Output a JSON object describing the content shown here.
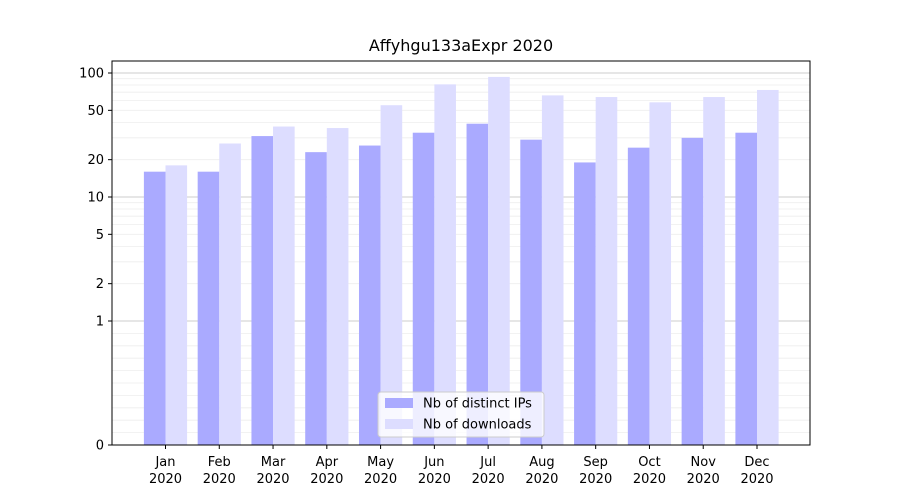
{
  "chart_data": {
    "type": "bar",
    "title": "Affyhgu133aExpr 2020",
    "xlabel": "",
    "ylabel": "",
    "yscale": "symlog",
    "ylim": [
      0,
      120
    ],
    "yticks": [
      0,
      1,
      2,
      5,
      10,
      20,
      50,
      100
    ],
    "ytick_labels": [
      "0",
      "1",
      "2",
      "5",
      "10",
      "20",
      "50",
      "100"
    ],
    "grid": "horizontal",
    "legend_position": "bottom-center",
    "categories": [
      "Jan 2020",
      "Feb 2020",
      "Mar 2020",
      "Apr 2020",
      "May 2020",
      "Jun 2020",
      "Jul 2020",
      "Aug 2020",
      "Sep 2020",
      "Oct 2020",
      "Nov 2020",
      "Dec 2020"
    ],
    "category_labels": [
      {
        "month": "Jan",
        "year": "2020"
      },
      {
        "month": "Feb",
        "year": "2020"
      },
      {
        "month": "Mar",
        "year": "2020"
      },
      {
        "month": "Apr",
        "year": "2020"
      },
      {
        "month": "May",
        "year": "2020"
      },
      {
        "month": "Jun",
        "year": "2020"
      },
      {
        "month": "Jul",
        "year": "2020"
      },
      {
        "month": "Aug",
        "year": "2020"
      },
      {
        "month": "Sep",
        "year": "2020"
      },
      {
        "month": "Oct",
        "year": "2020"
      },
      {
        "month": "Nov",
        "year": "2020"
      },
      {
        "month": "Dec",
        "year": "2020"
      }
    ],
    "series": [
      {
        "name": "Nb of distinct IPs",
        "color": "#aaaaff",
        "values": [
          16,
          16,
          31,
          23,
          26,
          33,
          39,
          29,
          19,
          25,
          30,
          33
        ]
      },
      {
        "name": "Nb of downloads",
        "color": "#ddddff",
        "values": [
          18,
          27,
          37,
          36,
          55,
          81,
          93,
          66,
          64,
          58,
          64,
          73
        ]
      }
    ]
  }
}
